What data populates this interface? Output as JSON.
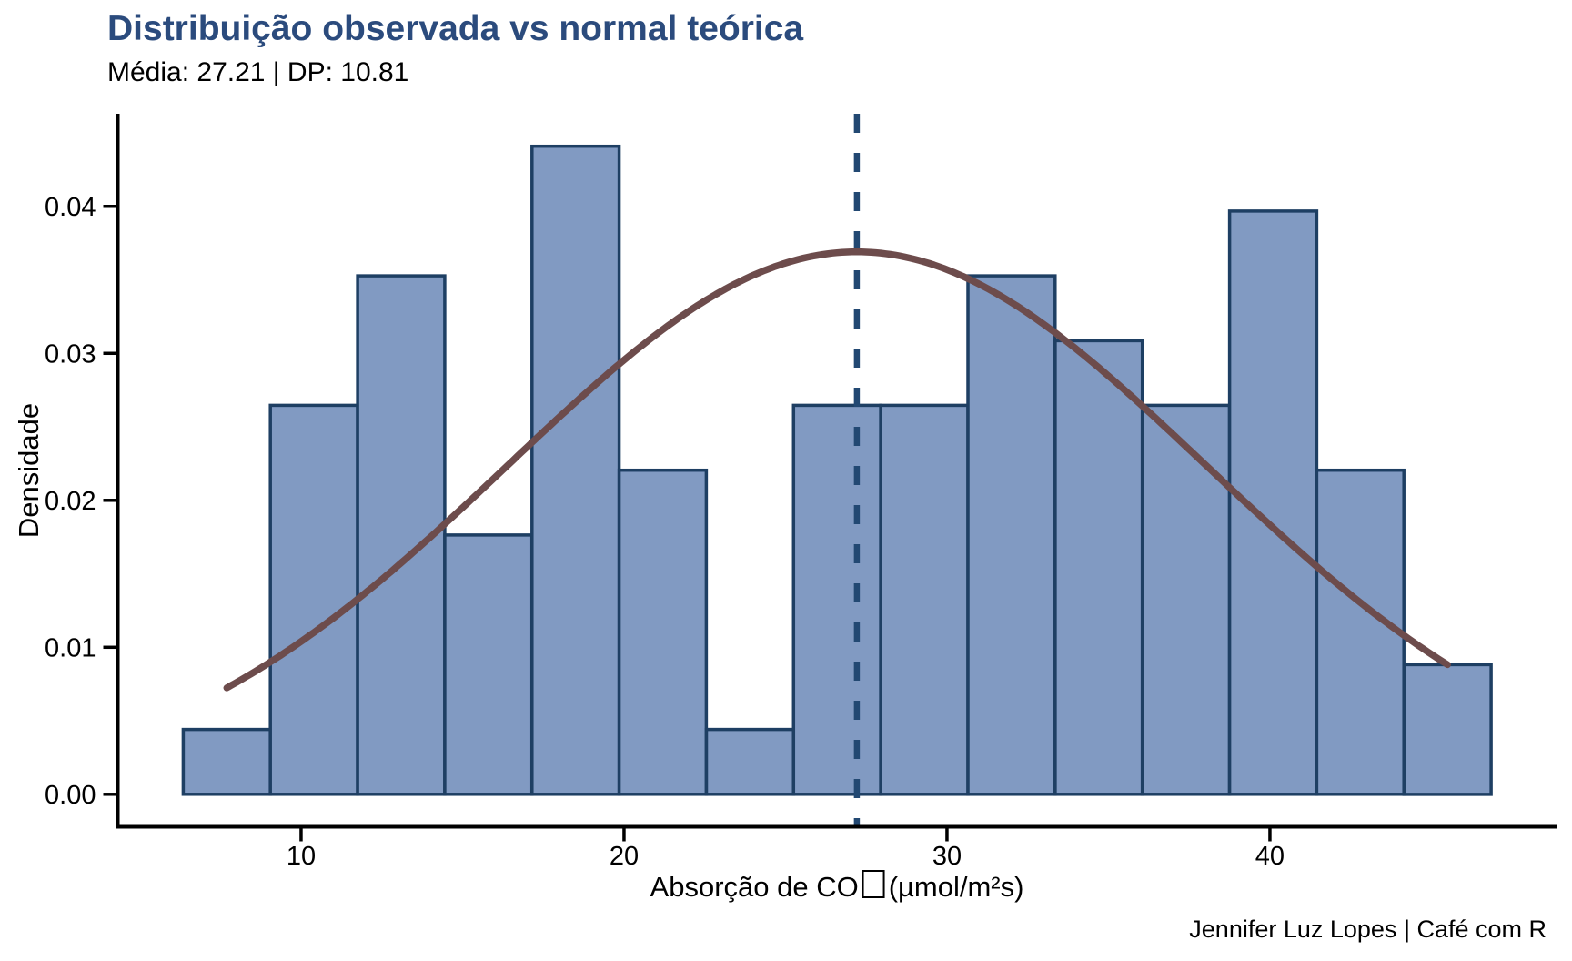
{
  "header": {
    "title": "Distribuição observada vs normal teórica",
    "subtitle": "Média: 27.21 | DP: 10.81"
  },
  "caption": "Jennifer Luz Lopes | Café com R",
  "axes": {
    "y_label": "Densidade",
    "x_label_pre": "Absorção de CO",
    "x_label_post": "(µmol/m²s)",
    "x_ticks": [
      10,
      20,
      30,
      40
    ],
    "x_tick_labels": [
      "10",
      "20",
      "30",
      "40"
    ],
    "y_ticks": [
      0,
      0.01,
      0.02,
      0.03,
      0.04
    ],
    "y_tick_labels": [
      "0.00",
      "0.01",
      "0.02",
      "0.03",
      "0.04"
    ]
  },
  "chart_data": {
    "type": "bar",
    "subtype": "density-histogram-with-normal-curve",
    "title": "Distribuição observada vs normal teórica",
    "subtitle": "Média: 27.21 | DP: 10.81",
    "xlabel": "Absorção de CO□ (µmol/m²s)",
    "ylabel": "Densidade",
    "caption": "Jennifer Luz Lopes | Café com R",
    "grid": false,
    "legend": "none",
    "xlim": [
      4.325,
      48.875
    ],
    "ylim": [
      -0.00221,
      0.0463
    ],
    "series": [
      {
        "name": "observed-density-histogram",
        "bin_start": 6.35,
        "bin_width": 2.7,
        "bin_edges": [
          6.35,
          9.05,
          11.75,
          14.45,
          17.15,
          19.85,
          22.55,
          25.25,
          27.95,
          30.65,
          33.35,
          36.05,
          38.75,
          41.45,
          44.15,
          46.85
        ],
        "densities": [
          0.00441,
          0.02646,
          0.03527,
          0.01764,
          0.04409,
          0.02205,
          0.00441,
          0.02646,
          0.02646,
          0.03527,
          0.03086,
          0.02646,
          0.03968,
          0.02205,
          0.00882
        ]
      },
      {
        "name": "theoretical-normal-curve",
        "mean": 27.21,
        "sd": 10.81,
        "x_from": 7.7,
        "x_to": 45.5,
        "peak_density": 0.0369
      },
      {
        "name": "mean-vline",
        "x": 27.21,
        "style": "dashed"
      }
    ],
    "colors": {
      "bar_fill": "#819AC2",
      "bar_stroke": "#1E3F63",
      "curve": "#6D4C4C",
      "mean_line": "#224872",
      "title": "#2B4B7D",
      "text": "#000000",
      "axis": "#000000",
      "background": "#FFFFFF"
    }
  }
}
